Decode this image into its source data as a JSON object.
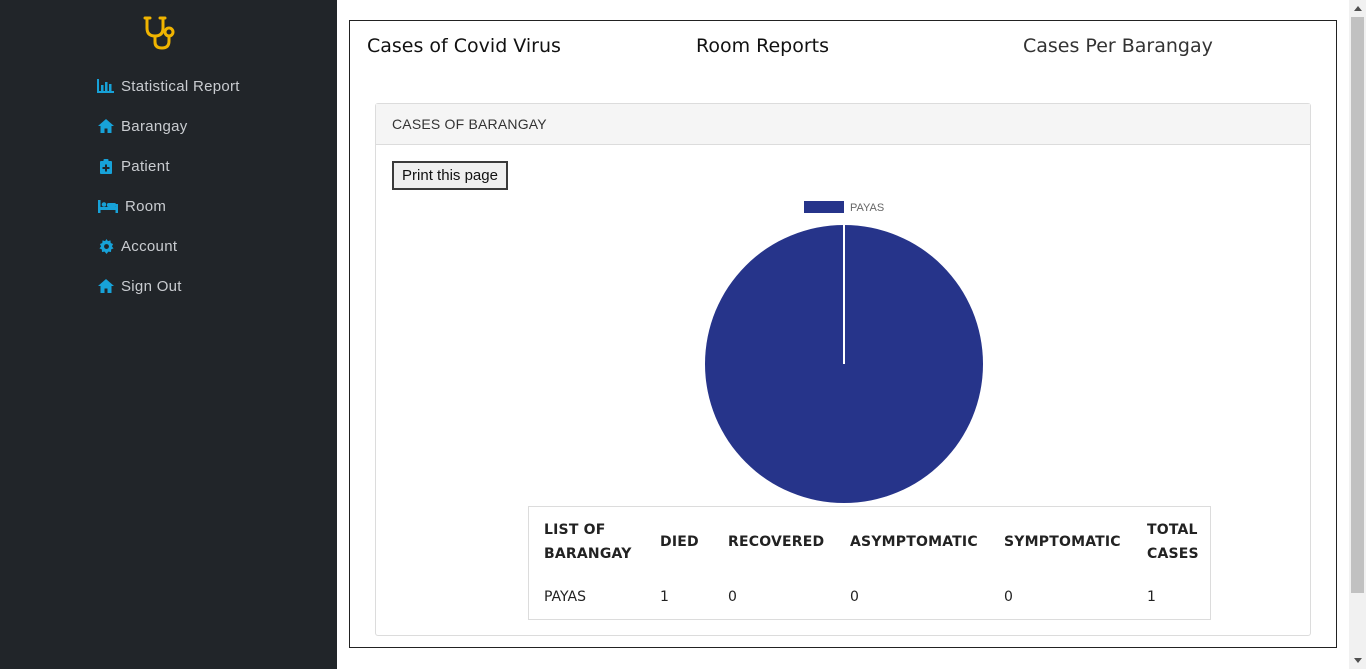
{
  "sidebar": {
    "logo": "stethoscope-icon",
    "items": [
      {
        "label": "Statistical Report",
        "icon": "bar-chart-icon"
      },
      {
        "label": "Barangay",
        "icon": "home-icon"
      },
      {
        "label": "Patient",
        "icon": "clipboard-plus-icon"
      },
      {
        "label": "Room",
        "icon": "bed-icon"
      },
      {
        "label": "Account",
        "icon": "gear-icon"
      },
      {
        "label": "Sign Out",
        "icon": "home-icon"
      }
    ],
    "colors": {
      "background": "#212529",
      "icon": "#17a2d8",
      "logo": "#f0b400"
    }
  },
  "tabs": [
    {
      "label": "Cases of Covid Virus"
    },
    {
      "label": "Room Reports"
    },
    {
      "label": "Cases Per Barangay"
    }
  ],
  "card": {
    "header": "CASES OF BARANGAY",
    "print_label": "Print this page"
  },
  "chart_data": {
    "type": "pie",
    "categories": [
      "PAYAS"
    ],
    "values": [
      1
    ],
    "colors": [
      "#26348a"
    ],
    "legend": "top"
  },
  "table": {
    "headers": [
      {
        "line1": "LIST OF",
        "line2": "BARANGAY"
      },
      {
        "line1": "DIED",
        "line2": ""
      },
      {
        "line1": "RECOVERED",
        "line2": ""
      },
      {
        "line1": "ASYMPTOMATIC",
        "line2": ""
      },
      {
        "line1": "SYMPTOMATIC",
        "line2": ""
      },
      {
        "line1": "TOTAL",
        "line2": "CASES"
      }
    ],
    "rows": [
      [
        "PAYAS",
        "1",
        "0",
        "0",
        "0",
        "1"
      ]
    ]
  }
}
